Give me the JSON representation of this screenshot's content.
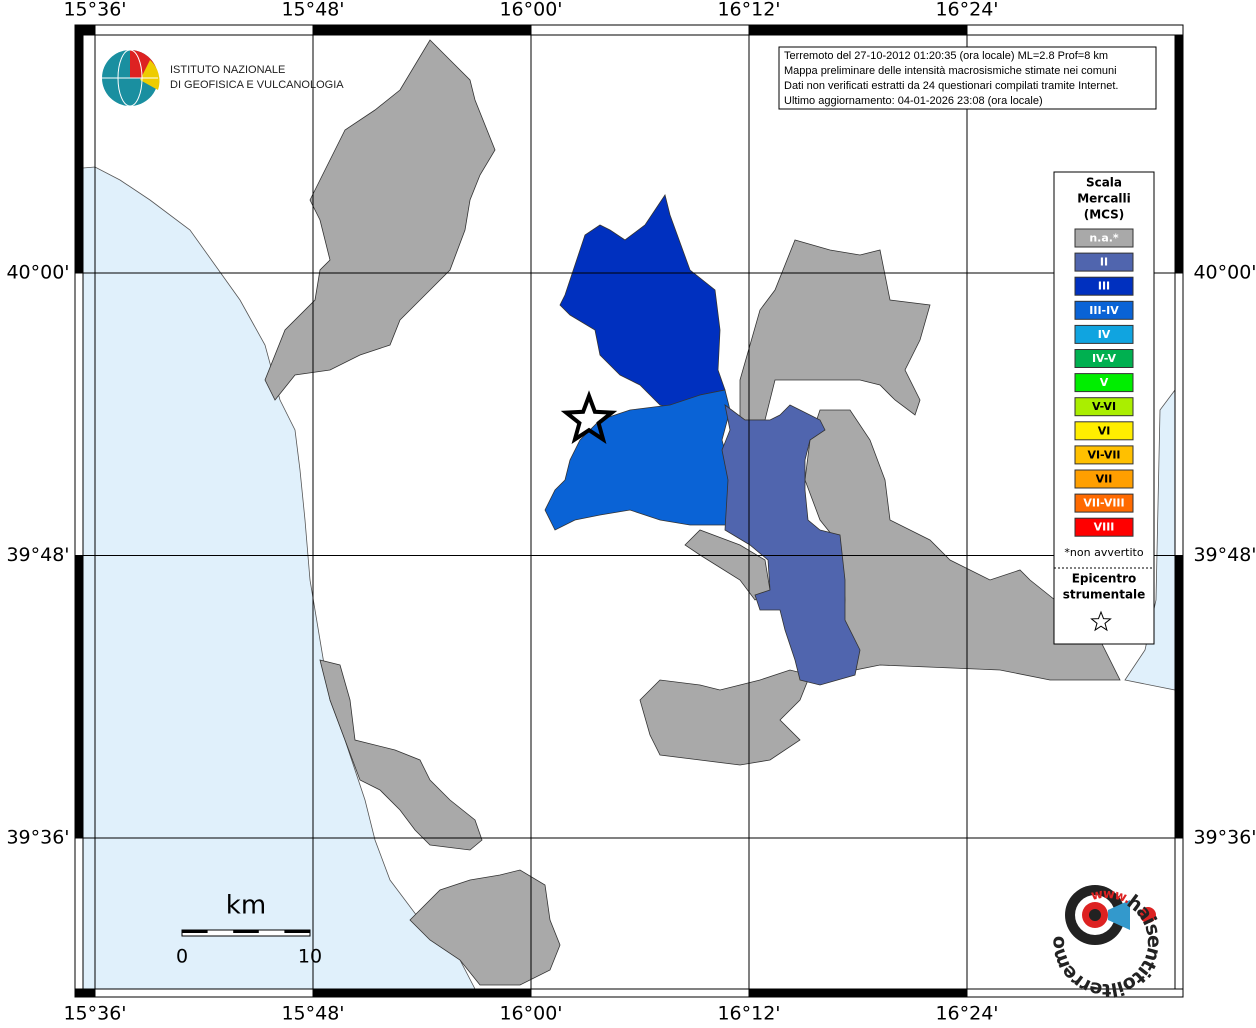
{
  "map": {
    "lon_labels": [
      "15°36'",
      "15°48'",
      "16°00'",
      "16°12'",
      "16°24'"
    ],
    "lat_labels": [
      "40°00'",
      "39°48'",
      "39°36'"
    ],
    "info_lines": [
      "Terremoto del 27-10-2012 01:20:35 (ora locale) ML=2.8 Prof=8 km",
      "Mappa preliminare delle intensità macrosismiche stimate nei comuni",
      "Dati non verificati estratti da 24 questionari compilati tramite Internet.",
      "Ultimo aggiornamento: 04-01-2026 23:08 (ora locale)"
    ],
    "ingv_lines": [
      "ISTITUTO NAZIONALE",
      "DI GEOFISICA E VULCANOLOGIA"
    ],
    "legend": {
      "title_lines": [
        "Scala",
        "Mercalli",
        "(MCS)"
      ],
      "items": [
        {
          "label": "n.a.*",
          "color": "#a9a9a9"
        },
        {
          "label": "II",
          "color": "#5065ae"
        },
        {
          "label": "III",
          "color": "#0030bf"
        },
        {
          "label": "III-IV",
          "color": "#0a63d6"
        },
        {
          "label": "IV",
          "color": "#10a4e0"
        },
        {
          "label": "IV-V",
          "color": "#00b050"
        },
        {
          "label": "V",
          "color": "#00ee00"
        },
        {
          "label": "V-VI",
          "color": "#aaee00"
        },
        {
          "label": "VI",
          "color": "#ffee00"
        },
        {
          "label": "VI-VII",
          "color": "#ffc000"
        },
        {
          "label": "VII",
          "color": "#ff9f00"
        },
        {
          "label": "VII-VIII",
          "color": "#ff6a00"
        },
        {
          "label": "VIII",
          "color": "#ff0000"
        }
      ],
      "footnote": "*non avvertito",
      "epicenter_lines": [
        "Epicentro",
        "strumentale"
      ]
    },
    "scale": {
      "unit": "km",
      "start": "0",
      "end": "10"
    },
    "site_logo": {
      "name": "haisentitoilterremoto.it",
      "prefix": "www."
    }
  }
}
